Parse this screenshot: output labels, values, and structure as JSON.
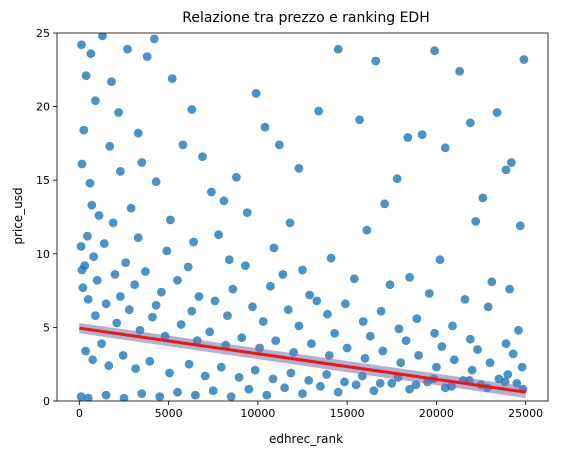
{
  "chart_data": {
    "type": "scatter",
    "title": "Relazione tra prezzo e ranking EDH",
    "xlabel": "edhrec_rank",
    "ylabel": "price_usd",
    "xlim": [
      -1250,
      26250
    ],
    "ylim": [
      0,
      25
    ],
    "x_ticks": [
      0,
      5000,
      10000,
      15000,
      20000,
      25000
    ],
    "x_tick_labels": [
      "0",
      "5000",
      "10000",
      "15000",
      "20000",
      "25000"
    ],
    "y_ticks": [
      0,
      5,
      10,
      15,
      20,
      25
    ],
    "y_tick_labels": [
      "0",
      "5",
      "10",
      "15",
      "20",
      "25"
    ],
    "grid": false,
    "series": [
      {
        "kind": "scatter",
        "color": "#1f77b4",
        "points": [
          [
            120,
            24.2
          ],
          [
            380,
            22.1
          ],
          [
            650,
            23.6
          ],
          [
            900,
            20.4
          ],
          [
            1300,
            24.8
          ],
          [
            1800,
            21.7
          ],
          [
            2200,
            19.6
          ],
          [
            2700,
            23.9
          ],
          [
            3300,
            18.2
          ],
          [
            3800,
            23.4
          ],
          [
            4200,
            24.6
          ],
          [
            5200,
            21.9
          ],
          [
            5800,
            17.4
          ],
          [
            6300,
            19.8
          ],
          [
            6900,
            16.6
          ],
          [
            7400,
            14.2
          ],
          [
            8100,
            13.6
          ],
          [
            8800,
            15.2
          ],
          [
            9400,
            12.8
          ],
          [
            9900,
            20.9
          ],
          [
            10400,
            18.6
          ],
          [
            11200,
            17.4
          ],
          [
            11800,
            12.1
          ],
          [
            12300,
            15.8
          ],
          [
            13400,
            19.7
          ],
          [
            14500,
            23.9
          ],
          [
            15700,
            19.1
          ],
          [
            16600,
            23.1
          ],
          [
            17100,
            13.4
          ],
          [
            17800,
            15.1
          ],
          [
            18400,
            17.9
          ],
          [
            19200,
            18.1
          ],
          [
            19900,
            23.8
          ],
          [
            20500,
            17.2
          ],
          [
            21300,
            22.4
          ],
          [
            21900,
            18.9
          ],
          [
            22600,
            13.8
          ],
          [
            23400,
            19.6
          ],
          [
            24200,
            16.2
          ],
          [
            24700,
            11.9
          ],
          [
            24900,
            23.2
          ],
          [
            23900,
            15.7
          ],
          [
            22200,
            12.2
          ],
          [
            20200,
            9.6
          ],
          [
            18500,
            8.4
          ],
          [
            16100,
            11.6
          ],
          [
            14100,
            9.7
          ],
          [
            12500,
            8.9
          ],
          [
            10900,
            10.4
          ],
          [
            9300,
            9.2
          ],
          [
            7800,
            11.3
          ],
          [
            6400,
            10.8
          ],
          [
            5100,
            12.3
          ],
          [
            4300,
            14.9
          ],
          [
            3500,
            16.2
          ],
          [
            2900,
            13.1
          ],
          [
            2300,
            15.6
          ],
          [
            1700,
            17.3
          ],
          [
            1100,
            12.6
          ],
          [
            600,
            14.8
          ],
          [
            250,
            18.4
          ],
          [
            150,
            16.1
          ],
          [
            450,
            11.2
          ],
          [
            800,
            9.8
          ],
          [
            1400,
            10.7
          ],
          [
            2000,
            8.6
          ],
          [
            2600,
            9.4
          ],
          [
            3100,
            7.9
          ],
          [
            3700,
            8.8
          ],
          [
            4600,
            7.4
          ],
          [
            5500,
            8.2
          ],
          [
            6700,
            7.1
          ],
          [
            7600,
            6.8
          ],
          [
            8600,
            7.6
          ],
          [
            9700,
            6.4
          ],
          [
            10700,
            7.8
          ],
          [
            11700,
            6.2
          ],
          [
            12900,
            7.2
          ],
          [
            13900,
            5.9
          ],
          [
            14900,
            6.6
          ],
          [
            15900,
            5.4
          ],
          [
            16900,
            6.1
          ],
          [
            17900,
            4.9
          ],
          [
            18900,
            5.6
          ],
          [
            19900,
            4.6
          ],
          [
            20900,
            5.1
          ],
          [
            21900,
            4.2
          ],
          [
            22900,
            6.4
          ],
          [
            23900,
            3.9
          ],
          [
            24600,
            4.8
          ],
          [
            24100,
            7.6
          ],
          [
            23100,
            8.1
          ],
          [
            21600,
            6.9
          ],
          [
            19600,
            7.3
          ],
          [
            17400,
            7.9
          ],
          [
            15400,
            8.3
          ],
          [
            13300,
            6.8
          ],
          [
            11400,
            8.6
          ],
          [
            8400,
            9.6
          ],
          [
            6100,
            9.1
          ],
          [
            4900,
            10.2
          ],
          [
            3300,
            11.1
          ],
          [
            1900,
            12.1
          ],
          [
            700,
            13.3
          ],
          [
            300,
            9.2
          ],
          [
            100,
            10.5
          ],
          [
            200,
            7.7
          ],
          [
            500,
            6.9
          ],
          [
            900,
            5.8
          ],
          [
            1500,
            6.6
          ],
          [
            2100,
            5.3
          ],
          [
            2800,
            6.2
          ],
          [
            3400,
            4.8
          ],
          [
            4100,
            5.7
          ],
          [
            4800,
            4.4
          ],
          [
            5700,
            5.2
          ],
          [
            6600,
            4.1
          ],
          [
            7300,
            4.7
          ],
          [
            8200,
            3.8
          ],
          [
            9100,
            4.3
          ],
          [
            10100,
            3.6
          ],
          [
            11000,
            4.1
          ],
          [
            12000,
            3.3
          ],
          [
            13000,
            3.9
          ],
          [
            14000,
            3.1
          ],
          [
            15000,
            3.6
          ],
          [
            16000,
            2.9
          ],
          [
            17000,
            3.4
          ],
          [
            18000,
            2.6
          ],
          [
            19000,
            3.1
          ],
          [
            20000,
            2.3
          ],
          [
            21000,
            2.8
          ],
          [
            22000,
            2.1
          ],
          [
            23000,
            2.6
          ],
          [
            24000,
            1.8
          ],
          [
            24800,
            2.3
          ],
          [
            24500,
            1.2
          ],
          [
            23500,
            1.5
          ],
          [
            22500,
            1.1
          ],
          [
            21500,
            1.4
          ],
          [
            20500,
            0.9
          ],
          [
            19500,
            1.3
          ],
          [
            18500,
            0.8
          ],
          [
            17500,
            1.2
          ],
          [
            16500,
            0.7
          ],
          [
            15500,
            1.1
          ],
          [
            14500,
            0.6
          ],
          [
            13500,
            1.0
          ],
          [
            12500,
            0.5
          ],
          [
            11500,
            0.9
          ],
          [
            10500,
            0.4
          ],
          [
            9500,
            0.8
          ],
          [
            8500,
            0.3
          ],
          [
            7500,
            0.7
          ],
          [
            6500,
            0.4
          ],
          [
            5500,
            0.6
          ],
          [
            4500,
            0.3
          ],
          [
            3500,
            0.5
          ],
          [
            2500,
            0.2
          ],
          [
            1500,
            0.4
          ],
          [
            500,
            0.2
          ],
          [
            100,
            0.3
          ],
          [
            350,
            3.4
          ],
          [
            750,
            2.8
          ],
          [
            1250,
            3.9
          ],
          [
            1650,
            2.4
          ],
          [
            2450,
            3.1
          ],
          [
            3150,
            2.2
          ],
          [
            3950,
            2.7
          ],
          [
            5050,
            1.9
          ],
          [
            6150,
            2.5
          ],
          [
            7050,
            1.7
          ],
          [
            7950,
            2.3
          ],
          [
            8950,
            1.6
          ],
          [
            9850,
            2.1
          ],
          [
            10850,
            1.5
          ],
          [
            11850,
            1.9
          ],
          [
            12850,
            1.4
          ],
          [
            13850,
            1.8
          ],
          [
            14850,
            1.3
          ],
          [
            15850,
            1.7
          ],
          [
            16850,
            1.2
          ],
          [
            17850,
            1.6
          ],
          [
            18850,
            1.1
          ],
          [
            19850,
            1.5
          ],
          [
            20850,
            1.0
          ],
          [
            21850,
            1.4
          ],
          [
            22850,
            0.9
          ],
          [
            23850,
            1.3
          ],
          [
            24850,
            0.8
          ],
          [
            24300,
            3.2
          ],
          [
            22300,
            3.5
          ],
          [
            20300,
            3.7
          ],
          [
            18300,
            4.1
          ],
          [
            16300,
            4.4
          ],
          [
            14300,
            4.6
          ],
          [
            12300,
            5.1
          ],
          [
            10300,
            5.4
          ],
          [
            8300,
            5.8
          ],
          [
            6300,
            6.1
          ],
          [
            4300,
            6.5
          ],
          [
            2300,
            7.1
          ],
          [
            1000,
            8.2
          ],
          [
            150,
            8.9
          ]
        ]
      },
      {
        "kind": "regression",
        "color": "#e31a1c",
        "ci_color": "#7a6fa8",
        "points": [
          [
            0,
            4.95
          ],
          [
            25000,
            0.6
          ]
        ],
        "ci": {
          "lower": [
            [
              0,
              4.6
            ],
            [
              25000,
              0.2
            ]
          ],
          "upper": [
            [
              0,
              5.3
            ],
            [
              25000,
              1.0
            ]
          ]
        }
      }
    ]
  }
}
